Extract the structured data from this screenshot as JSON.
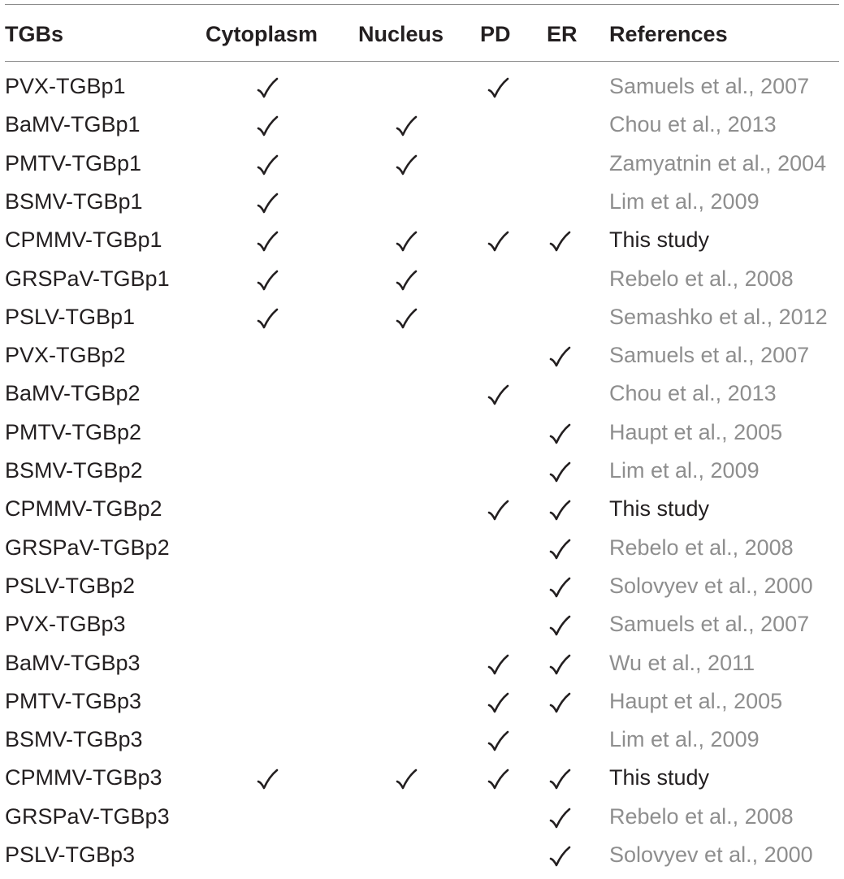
{
  "table": {
    "headers": {
      "tgbs": "TGBs",
      "cytoplasm": "Cytoplasm",
      "nucleus": "Nucleus",
      "pd": "PD",
      "er": "ER",
      "references": "References"
    },
    "check_icon": "checkmark-icon",
    "rows": [
      {
        "name": "PVX-TGBp1",
        "cytoplasm": true,
        "nucleus": false,
        "pd": true,
        "er": false,
        "reference": "Samuels et al., 2007",
        "this_study": false
      },
      {
        "name": "BaMV-TGBp1",
        "cytoplasm": true,
        "nucleus": true,
        "pd": false,
        "er": false,
        "reference": "Chou et al., 2013",
        "this_study": false
      },
      {
        "name": "PMTV-TGBp1",
        "cytoplasm": true,
        "nucleus": true,
        "pd": false,
        "er": false,
        "reference": "Zamyatnin et al., 2004",
        "this_study": false
      },
      {
        "name": "BSMV-TGBp1",
        "cytoplasm": true,
        "nucleus": false,
        "pd": false,
        "er": false,
        "reference": "Lim et al., 2009",
        "this_study": false
      },
      {
        "name": "CPMMV-TGBp1",
        "cytoplasm": true,
        "nucleus": true,
        "pd": true,
        "er": true,
        "reference": "This study",
        "this_study": true
      },
      {
        "name": "GRSPaV-TGBp1",
        "cytoplasm": true,
        "nucleus": true,
        "pd": false,
        "er": false,
        "reference": "Rebelo et al., 2008",
        "this_study": false
      },
      {
        "name": "PSLV-TGBp1",
        "cytoplasm": true,
        "nucleus": true,
        "pd": false,
        "er": false,
        "reference": "Semashko et al., 2012",
        "this_study": false
      },
      {
        "name": "PVX-TGBp2",
        "cytoplasm": false,
        "nucleus": false,
        "pd": false,
        "er": true,
        "reference": "Samuels et al., 2007",
        "this_study": false
      },
      {
        "name": "BaMV-TGBp2",
        "cytoplasm": false,
        "nucleus": false,
        "pd": true,
        "er": false,
        "reference": "Chou et al., 2013",
        "this_study": false
      },
      {
        "name": "PMTV-TGBp2",
        "cytoplasm": false,
        "nucleus": false,
        "pd": false,
        "er": true,
        "reference": "Haupt et al., 2005",
        "this_study": false
      },
      {
        "name": "BSMV-TGBp2",
        "cytoplasm": false,
        "nucleus": false,
        "pd": false,
        "er": true,
        "reference": "Lim et al., 2009",
        "this_study": false
      },
      {
        "name": "CPMMV-TGBp2",
        "cytoplasm": false,
        "nucleus": false,
        "pd": true,
        "er": true,
        "reference": "This study",
        "this_study": true
      },
      {
        "name": "GRSPaV-TGBp2",
        "cytoplasm": false,
        "nucleus": false,
        "pd": false,
        "er": true,
        "reference": "Rebelo et al., 2008",
        "this_study": false
      },
      {
        "name": "PSLV-TGBp2",
        "cytoplasm": false,
        "nucleus": false,
        "pd": false,
        "er": true,
        "reference": "Solovyev et al., 2000",
        "this_study": false
      },
      {
        "name": "PVX-TGBp3",
        "cytoplasm": false,
        "nucleus": false,
        "pd": false,
        "er": true,
        "reference": "Samuels et al., 2007",
        "this_study": false
      },
      {
        "name": "BaMV-TGBp3",
        "cytoplasm": false,
        "nucleus": false,
        "pd": true,
        "er": true,
        "reference": "Wu et al., 2011",
        "this_study": false
      },
      {
        "name": "PMTV-TGBp3",
        "cytoplasm": false,
        "nucleus": false,
        "pd": true,
        "er": true,
        "reference": "Haupt et al., 2005",
        "this_study": false
      },
      {
        "name": "BSMV-TGBp3",
        "cytoplasm": false,
        "nucleus": false,
        "pd": true,
        "er": false,
        "reference": "Lim et al., 2009",
        "this_study": false
      },
      {
        "name": "CPMMV-TGBp3",
        "cytoplasm": true,
        "nucleus": true,
        "pd": true,
        "er": true,
        "reference": "This study",
        "this_study": true
      },
      {
        "name": "GRSPaV-TGBp3",
        "cytoplasm": false,
        "nucleus": false,
        "pd": false,
        "er": true,
        "reference": "Rebelo et al., 2008",
        "this_study": false
      },
      {
        "name": "PSLV-TGBp3",
        "cytoplasm": false,
        "nucleus": false,
        "pd": false,
        "er": true,
        "reference": "Solovyev et al., 2000",
        "this_study": false
      }
    ]
  }
}
